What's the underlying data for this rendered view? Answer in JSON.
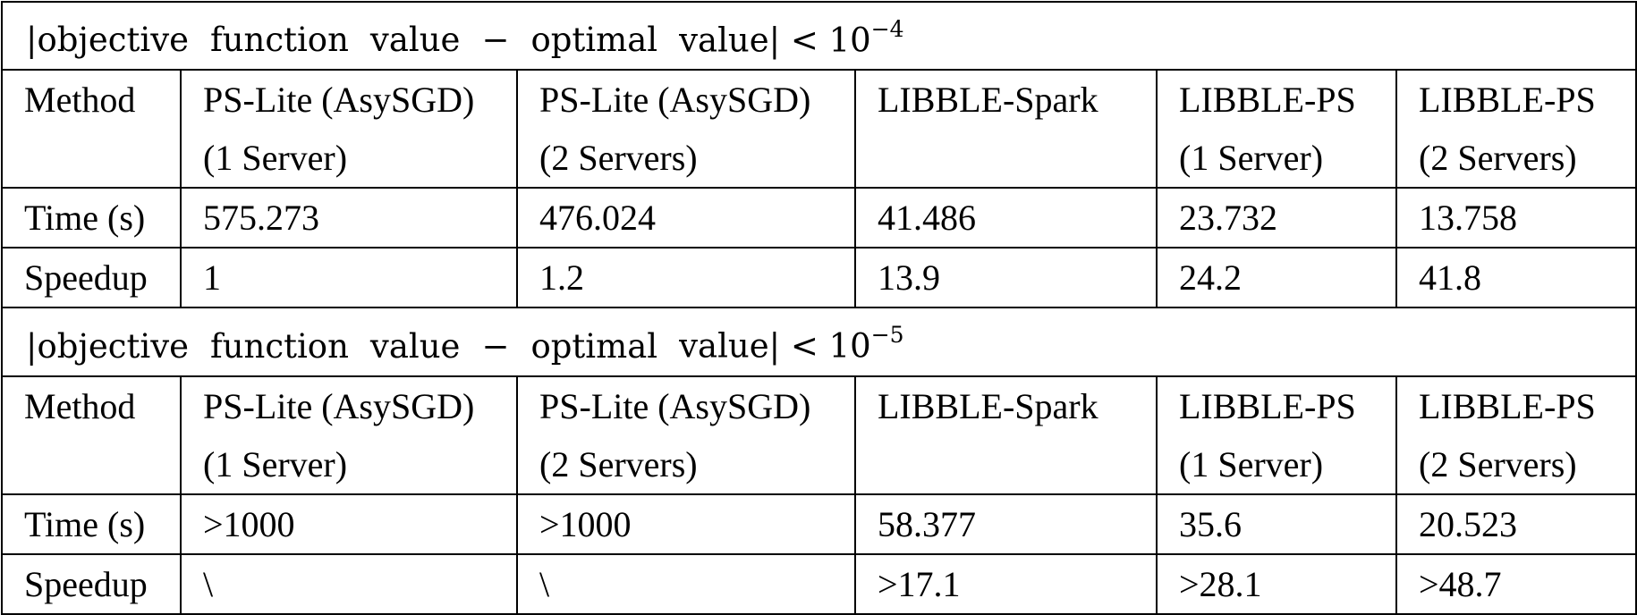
{
  "tables": [
    {
      "condition": {
        "prefix": "|objective",
        "w1": "function",
        "w2": "value",
        "w3": "−",
        "w4": "optimal",
        "w5": "value| < 10",
        "exponent": "−4"
      },
      "method_label": "Method",
      "methods": [
        {
          "line1": "PS-Lite (AsySGD)",
          "line2": "(1 Server)"
        },
        {
          "line1": "PS-Lite (AsySGD)",
          "line2": "(2 Servers)"
        },
        {
          "line1": "LIBBLE-Spark",
          "line2": ""
        },
        {
          "line1": "LIBBLE-PS",
          "line2": "(1 Server)"
        },
        {
          "line1": "LIBBLE-PS",
          "line2": "(2 Servers)"
        }
      ],
      "time_label": "Time (s)",
      "times": [
        "575.273",
        "476.024",
        "41.486",
        "23.732",
        "13.758"
      ],
      "speedup_label": "Speedup",
      "speedups": [
        "1",
        "1.2",
        "13.9",
        "24.2",
        "41.8"
      ]
    },
    {
      "condition": {
        "prefix": "|objective",
        "w1": "function",
        "w2": "value",
        "w3": "−",
        "w4": "optimal",
        "w5": "value| < 10",
        "exponent": "−5"
      },
      "method_label": "Method",
      "methods": [
        {
          "line1": "PS-Lite (AsySGD)",
          "line2": "(1 Server)"
        },
        {
          "line1": "PS-Lite (AsySGD)",
          "line2": "(2 Servers)"
        },
        {
          "line1": "LIBBLE-Spark",
          "line2": ""
        },
        {
          "line1": "LIBBLE-PS",
          "line2": "(1 Server)"
        },
        {
          "line1": "LIBBLE-PS",
          "line2": "(2 Servers)"
        }
      ],
      "time_label": "Time (s)",
      "times": [
        ">1000",
        ">1000",
        "58.377",
        "35.6",
        "20.523"
      ],
      "speedup_label": "Speedup",
      "speedups": [
        "\\",
        "\\",
        ">17.1",
        ">28.1",
        ">48.7"
      ]
    }
  ]
}
